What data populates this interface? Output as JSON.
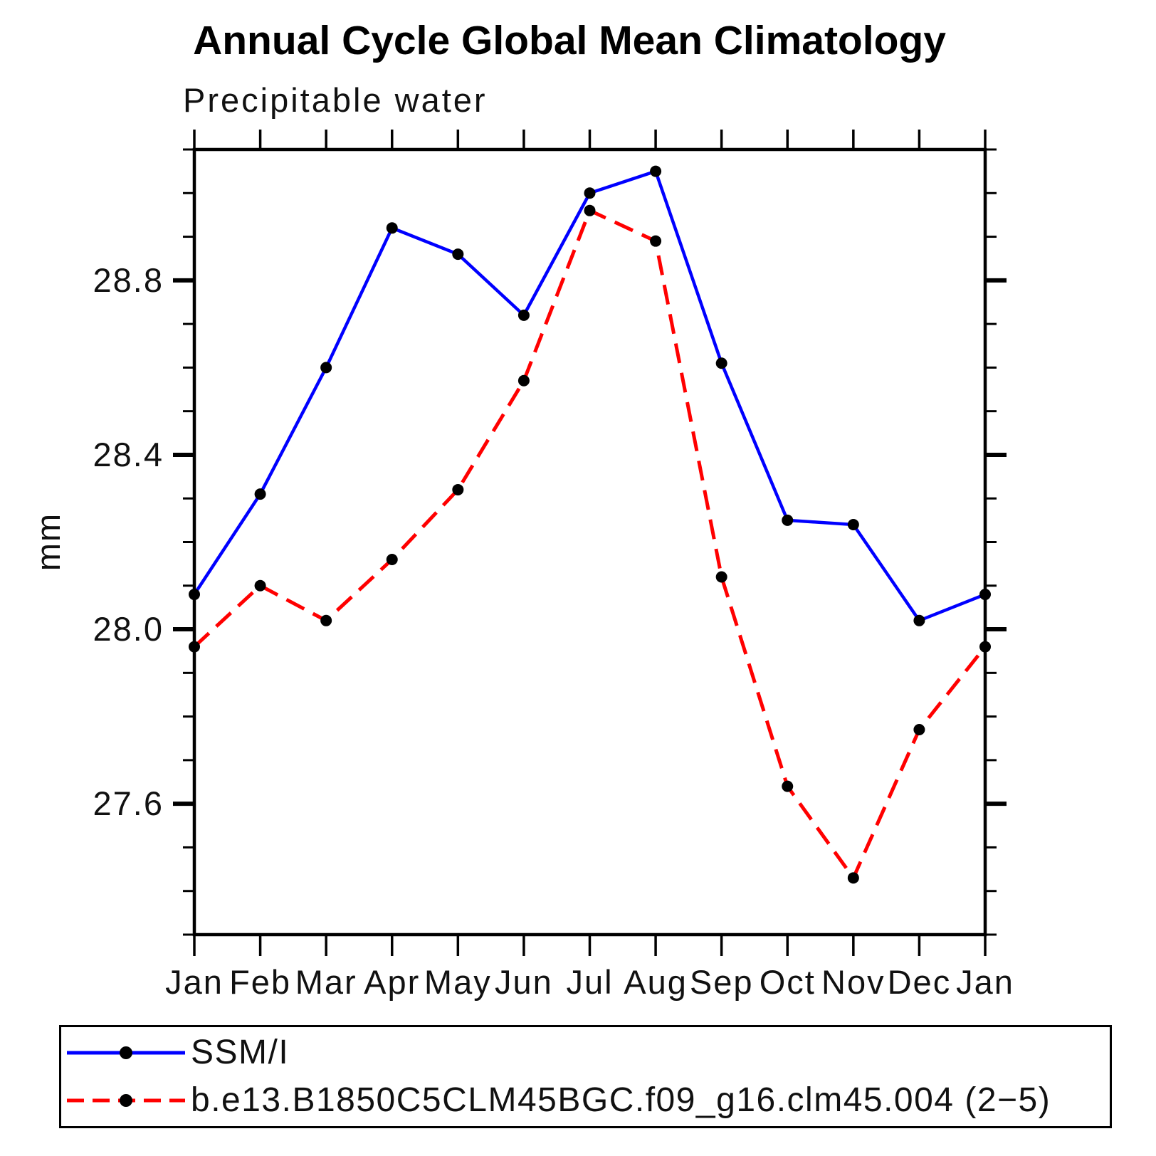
{
  "chart_data": {
    "type": "line",
    "title": "Annual Cycle Global Mean Climatology",
    "subtitle_left": "Precipitable water",
    "ylabel": "mm",
    "xlabel": "",
    "categories": [
      "Jan",
      "Feb",
      "Mar",
      "Apr",
      "May",
      "Jun",
      "Jul",
      "Aug",
      "Sep",
      "Oct",
      "Nov",
      "Dec",
      "Jan"
    ],
    "ylim": [
      27.3,
      29.1
    ],
    "yticks_major": [
      27.6,
      28.0,
      28.4,
      28.8
    ],
    "ytick_labels": [
      "27.6",
      "28.0",
      "28.4",
      "28.8"
    ],
    "y_minor_tick_step": 0.1,
    "grid": false,
    "legend_position": "bottom-left-box",
    "axis_color": "#000000",
    "marker_color": "#000000",
    "series": [
      {
        "name": "SSM/I",
        "color": "#0000ff",
        "line_style": "solid",
        "marker": "filled-circle",
        "values": [
          28.08,
          28.31,
          28.6,
          28.92,
          28.86,
          28.72,
          29.0,
          29.05,
          28.61,
          28.25,
          28.24,
          28.02,
          28.08
        ]
      },
      {
        "name": "b.e13.B1850C5CLM45BGC.f09_g16.clm45.004 (2−5)",
        "color": "#ff0000",
        "line_style": "dashed",
        "marker": "filled-circle",
        "values": [
          27.96,
          28.1,
          28.02,
          28.16,
          28.32,
          28.57,
          28.96,
          28.89,
          28.12,
          27.64,
          27.43,
          27.77,
          27.96
        ]
      }
    ]
  }
}
